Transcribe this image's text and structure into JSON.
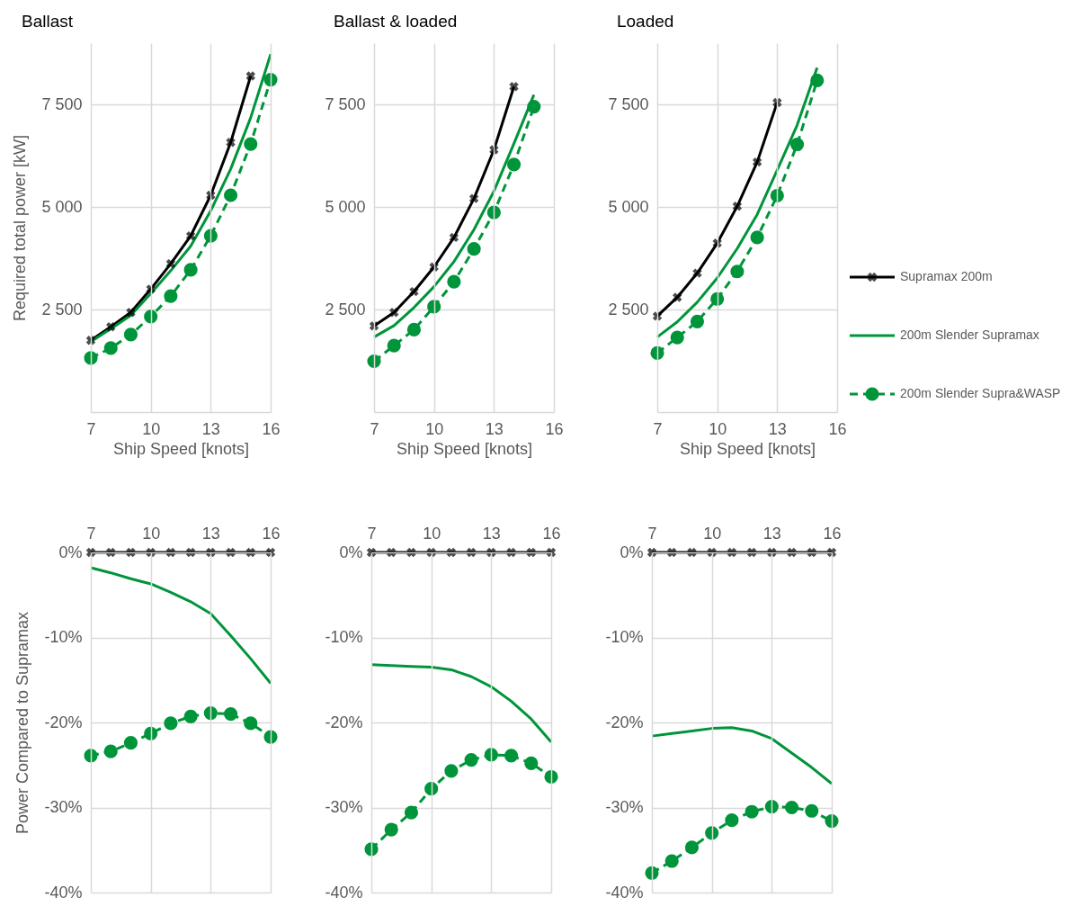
{
  "chart_data": [
    {
      "type": "line",
      "title": "Ballast",
      "xlabel": "Ship Speed [knots]",
      "ylabel": "Required total power [kW]",
      "x": [
        7,
        8,
        9,
        10,
        11,
        12,
        13,
        14,
        15,
        16
      ],
      "xlim": [
        7,
        16
      ],
      "xticks": [
        7,
        10,
        13,
        16
      ],
      "ylim": [
        0,
        9000
      ],
      "yticks": [
        {
          "value": 2500,
          "label": "2 500"
        },
        {
          "value": 5000,
          "label": "5 000"
        },
        {
          "value": 7500,
          "label": "7 500"
        }
      ],
      "grid": true,
      "legend": false,
      "series": [
        {
          "color": "#000000",
          "marker": "cross",
          "line_style": "solid",
          "values": [
            1750,
            2080,
            2430,
            3000,
            3620,
            4300,
            5290,
            6580,
            8200,
            null
          ]
        },
        {
          "color": "#00953a",
          "marker": "none",
          "line_style": "solid",
          "values": [
            1720,
            2030,
            2360,
            2890,
            3450,
            4050,
            4910,
            5930,
            7180,
            8730
          ]
        },
        {
          "color": "#00953a",
          "marker": "circle",
          "line_style": "dashed",
          "values": [
            1320,
            1560,
            1890,
            2330,
            2830,
            3470,
            4300,
            5290,
            6540,
            8110
          ]
        }
      ]
    },
    {
      "type": "line",
      "title": "Ballast & loaded",
      "xlabel": "Ship Speed [knots]",
      "x": [
        7,
        8,
        9,
        10,
        11,
        12,
        13,
        14,
        15
      ],
      "xlim": [
        7,
        16
      ],
      "xticks": [
        7,
        10,
        13,
        16
      ],
      "ylim": [
        0,
        9000
      ],
      "yticks": [
        {
          "value": 2500,
          "label": "2 500"
        },
        {
          "value": 5000,
          "label": "5 000"
        },
        {
          "value": 7500,
          "label": "7 500"
        }
      ],
      "grid": true,
      "legend": false,
      "series": [
        {
          "color": "#000000",
          "marker": "cross",
          "line_style": "solid",
          "values": [
            2100,
            2430,
            2940,
            3540,
            4260,
            5210,
            6400,
            7940,
            null
          ]
        },
        {
          "color": "#00953a",
          "marker": "none",
          "line_style": "solid",
          "values": [
            1830,
            2110,
            2550,
            3060,
            3670,
            4450,
            5390,
            6550,
            7740
          ]
        },
        {
          "color": "#00953a",
          "marker": "circle",
          "line_style": "dashed",
          "values": [
            1240,
            1620,
            2010,
            2570,
            3180,
            3980,
            4870,
            6040,
            7450
          ]
        }
      ]
    },
    {
      "type": "line",
      "title": "Loaded",
      "xlabel": "Ship Speed [knots]",
      "x": [
        7,
        8,
        9,
        10,
        11,
        12,
        13,
        14,
        15
      ],
      "xlim": [
        7,
        16
      ],
      "xticks": [
        7,
        10,
        13,
        16
      ],
      "ylim": [
        0,
        9000
      ],
      "yticks": [
        {
          "value": 2500,
          "label": "2 500"
        },
        {
          "value": 5000,
          "label": "5 000"
        },
        {
          "value": 7500,
          "label": "7 500"
        }
      ],
      "grid": true,
      "legend": "right",
      "series": [
        {
          "name": "Supramax 200m",
          "color": "#000000",
          "marker": "cross",
          "line_style": "solid",
          "values": [
            2340,
            2800,
            3390,
            4120,
            5020,
            6100,
            7550,
            null,
            null
          ]
        },
        {
          "name": "200m Slender Supramax",
          "color": "#00953a",
          "marker": "none",
          "line_style": "solid",
          "values": [
            1830,
            2200,
            2680,
            3270,
            3990,
            4820,
            5900,
            7000,
            8400
          ]
        },
        {
          "name": "200m Slender Supra&WASP",
          "color": "#00953a",
          "marker": "circle",
          "line_style": "dashed",
          "values": [
            1440,
            1820,
            2210,
            2760,
            3430,
            4260,
            5280,
            6530,
            8090
          ]
        }
      ]
    },
    {
      "type": "line",
      "ylabel": "Power Compared to Supramax",
      "x": [
        7,
        8,
        9,
        10,
        11,
        12,
        13,
        14,
        15,
        16
      ],
      "xlim": [
        7,
        16
      ],
      "xticks": [
        7,
        10,
        13,
        16
      ],
      "ylim": [
        -40,
        0
      ],
      "yticks": [
        {
          "value": -40,
          "label": "-40%"
        },
        {
          "value": -30,
          "label": "-30%"
        },
        {
          "value": -20,
          "label": "-20%"
        },
        {
          "value": -10,
          "label": "-10%"
        },
        {
          "value": 0,
          "label": "0%"
        }
      ],
      "grid": true,
      "legend": false,
      "series": [
        {
          "color": "#000000",
          "marker": "cross",
          "line_style": "solid",
          "values": [
            0,
            0,
            0,
            0,
            0,
            0,
            0,
            0,
            0,
            0
          ]
        },
        {
          "color": "#00953a",
          "marker": "none",
          "line_style": "solid",
          "values": [
            -1.8,
            -2.4,
            -3.1,
            -3.7,
            -4.7,
            -5.8,
            -7.2,
            -9.8,
            -12.5,
            -15.4
          ]
        },
        {
          "color": "#00953a",
          "marker": "circle",
          "line_style": "dashed",
          "values": [
            -23.9,
            -23.4,
            -22.4,
            -21.3,
            -20.1,
            -19.3,
            -18.9,
            -19.0,
            -20.1,
            -21.7
          ]
        }
      ]
    },
    {
      "type": "line",
      "x": [
        7,
        8,
        9,
        10,
        11,
        12,
        13,
        14,
        15,
        16
      ],
      "xlim": [
        7,
        16
      ],
      "xticks": [
        7,
        10,
        13,
        16
      ],
      "ylim": [
        -40,
        0
      ],
      "yticks": [
        {
          "value": -40,
          "label": "-40%"
        },
        {
          "value": -30,
          "label": "-30%"
        },
        {
          "value": -20,
          "label": "-20%"
        },
        {
          "value": -10,
          "label": "-10%"
        },
        {
          "value": 0,
          "label": "0%"
        }
      ],
      "grid": true,
      "legend": false,
      "series": [
        {
          "color": "#000000",
          "marker": "cross",
          "line_style": "solid",
          "values": [
            0,
            0,
            0,
            0,
            0,
            0,
            0,
            0,
            0,
            0
          ]
        },
        {
          "color": "#00953a",
          "marker": "none",
          "line_style": "solid",
          "values": [
            -13.2,
            -13.3,
            -13.4,
            -13.5,
            -13.8,
            -14.6,
            -15.8,
            -17.5,
            -19.6,
            -22.3
          ]
        },
        {
          "color": "#00953a",
          "marker": "circle",
          "line_style": "dashed",
          "values": [
            -34.9,
            -32.6,
            -30.6,
            -27.8,
            -25.7,
            -24.4,
            -23.8,
            -23.9,
            -24.8,
            -26.4
          ]
        }
      ]
    },
    {
      "type": "line",
      "x": [
        7,
        8,
        9,
        10,
        11,
        12,
        13,
        14,
        15,
        16
      ],
      "xlim": [
        7,
        16
      ],
      "xticks": [
        7,
        10,
        13,
        16
      ],
      "ylim": [
        -40,
        0
      ],
      "yticks": [
        {
          "value": -40,
          "label": "-40%"
        },
        {
          "value": -30,
          "label": "-30%"
        },
        {
          "value": -20,
          "label": "-20%"
        },
        {
          "value": -10,
          "label": "-10%"
        },
        {
          "value": 0,
          "label": "0%"
        }
      ],
      "grid": true,
      "legend": false,
      "series": [
        {
          "color": "#000000",
          "marker": "cross",
          "line_style": "solid",
          "values": [
            0,
            0,
            0,
            0,
            0,
            0,
            0,
            0,
            0,
            0
          ]
        },
        {
          "color": "#00953a",
          "marker": "none",
          "line_style": "solid",
          "values": [
            -21.6,
            -21.3,
            -21.0,
            -20.7,
            -20.6,
            -21.0,
            -21.9,
            -23.6,
            -25.3,
            -27.2
          ]
        },
        {
          "color": "#00953a",
          "marker": "circle",
          "line_style": "dashed",
          "values": [
            -37.7,
            -36.3,
            -34.7,
            -33.0,
            -31.5,
            -30.5,
            -29.9,
            -30.0,
            -30.4,
            -31.6
          ]
        }
      ]
    }
  ]
}
